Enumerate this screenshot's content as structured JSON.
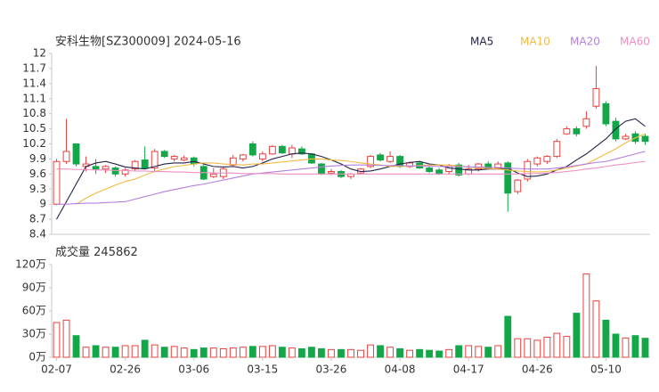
{
  "chart_data": [
    {
      "type": "candlestick",
      "title": "安科生物[SZ300009] 2024-05-16",
      "up_color": "#e8413f",
      "down_color": "#13a748",
      "open": [
        9.0,
        9.85,
        10.2,
        9.75,
        9.75,
        9.7,
        9.72,
        9.6,
        9.7,
        9.88,
        9.72,
        10.05,
        9.9,
        9.88,
        9.92,
        9.75,
        9.55,
        9.55,
        9.78,
        9.9,
        10.2,
        9.9,
        10.0,
        10.15,
        10.0,
        10.1,
        10.0,
        9.8,
        9.62,
        9.65,
        9.55,
        9.62,
        9.75,
        9.98,
        9.85,
        9.95,
        9.75,
        9.82,
        9.72,
        9.68,
        9.65,
        9.78,
        9.6,
        9.7,
        9.8,
        9.72,
        9.82,
        9.25,
        9.5,
        9.8,
        9.85,
        9.95,
        10.4,
        10.5,
        10.55,
        10.95,
        11.0,
        10.65,
        10.3,
        10.4,
        10.35
      ],
      "high": [
        9.9,
        10.7,
        10.2,
        9.95,
        9.9,
        9.78,
        9.75,
        9.72,
        9.88,
        10.15,
        10.1,
        10.08,
        9.98,
        9.97,
        9.95,
        9.78,
        9.72,
        9.75,
        9.98,
        10.0,
        10.25,
        10.05,
        10.18,
        10.18,
        10.18,
        10.15,
        10.02,
        9.82,
        9.7,
        9.68,
        9.62,
        9.72,
        9.98,
        10.02,
        10.05,
        9.98,
        9.85,
        9.85,
        9.75,
        9.72,
        9.8,
        9.82,
        9.78,
        9.82,
        9.85,
        9.85,
        9.85,
        9.5,
        9.9,
        9.95,
        9.98,
        10.3,
        10.55,
        10.55,
        10.85,
        11.75,
        11.05,
        10.72,
        10.4,
        10.45,
        10.4
      ],
      "low": [
        8.98,
        9.8,
        9.75,
        9.65,
        9.6,
        9.62,
        9.55,
        9.55,
        9.65,
        9.7,
        9.65,
        9.92,
        9.85,
        9.85,
        9.75,
        9.48,
        9.52,
        9.5,
        9.75,
        9.85,
        9.95,
        9.85,
        9.98,
        10.0,
        9.92,
        9.98,
        9.8,
        9.58,
        9.58,
        9.52,
        9.5,
        9.6,
        9.72,
        9.85,
        9.82,
        9.72,
        9.72,
        9.7,
        9.62,
        9.58,
        9.6,
        9.55,
        9.58,
        9.65,
        9.7,
        9.7,
        8.85,
        9.2,
        9.45,
        9.75,
        9.8,
        9.92,
        10.38,
        10.35,
        10.5,
        10.9,
        10.55,
        10.25,
        10.28,
        10.2,
        10.18
      ],
      "close": [
        9.85,
        10.05,
        9.8,
        9.8,
        9.7,
        9.75,
        9.6,
        9.68,
        9.85,
        9.72,
        10.05,
        9.95,
        9.95,
        9.92,
        9.8,
        9.5,
        9.6,
        9.7,
        9.92,
        9.98,
        9.98,
        10.0,
        10.15,
        10.02,
        10.12,
        10.0,
        9.82,
        9.6,
        9.65,
        9.55,
        9.6,
        9.7,
        9.95,
        9.88,
        9.95,
        9.75,
        9.82,
        9.72,
        9.65,
        9.6,
        9.75,
        9.58,
        9.7,
        9.8,
        9.72,
        9.8,
        9.22,
        9.48,
        9.85,
        9.92,
        9.95,
        10.25,
        10.5,
        10.4,
        10.7,
        11.3,
        10.6,
        10.3,
        10.35,
        10.25,
        10.25
      ],
      "series": [
        {
          "name": "MA5",
          "color": "#22224a",
          "values": [
            8.7,
            9.05,
            9.4,
            9.75,
            9.82,
            9.85,
            9.8,
            9.74,
            9.72,
            9.7,
            9.75,
            9.8,
            9.82,
            9.82,
            9.85,
            9.8,
            9.75,
            9.74,
            9.75,
            9.72,
            9.75,
            9.82,
            9.9,
            9.95,
            10.0,
            10.02,
            10.0,
            9.95,
            9.88,
            9.8,
            9.7,
            9.65,
            9.66,
            9.7,
            9.75,
            9.8,
            9.83,
            9.85,
            9.8,
            9.78,
            9.72,
            9.7,
            9.68,
            9.68,
            9.7,
            9.7,
            9.72,
            9.62,
            9.55,
            9.56,
            9.6,
            9.68,
            9.75,
            9.88,
            10.0,
            10.15,
            10.3,
            10.5,
            10.65,
            10.7,
            10.55
          ]
        },
        {
          "name": "MA10",
          "color": "#f5b942",
          "values": [
            null,
            null,
            9.0,
            9.12,
            9.22,
            9.3,
            9.38,
            9.45,
            9.5,
            9.58,
            9.65,
            9.7,
            9.75,
            9.77,
            9.8,
            9.82,
            9.82,
            9.8,
            9.79,
            9.78,
            9.8,
            9.8,
            9.82,
            9.84,
            9.86,
            9.88,
            9.9,
            9.9,
            9.88,
            9.87,
            9.85,
            9.82,
            9.8,
            9.78,
            9.75,
            9.75,
            9.76,
            9.77,
            9.78,
            9.78,
            9.78,
            9.76,
            9.74,
            9.72,
            9.71,
            9.7,
            9.68,
            9.66,
            9.65,
            9.64,
            9.65,
            9.68,
            9.72,
            9.76,
            9.8,
            9.9,
            10.0,
            10.1,
            10.22,
            10.32,
            10.4
          ]
        },
        {
          "name": "MA20",
          "color": "#b57fe0",
          "values": [
            9.0,
            9.0,
            9.01,
            9.02,
            9.02,
            9.03,
            9.04,
            9.05,
            9.1,
            9.15,
            9.2,
            9.25,
            9.29,
            9.33,
            9.37,
            9.4,
            9.44,
            9.48,
            9.52,
            9.56,
            9.6,
            9.62,
            9.64,
            9.66,
            9.68,
            9.7,
            9.72,
            9.74,
            9.76,
            9.77,
            9.78,
            9.78,
            9.78,
            9.77,
            9.77,
            9.77,
            9.76,
            9.76,
            9.76,
            9.75,
            9.75,
            9.75,
            9.74,
            9.74,
            9.73,
            9.73,
            9.72,
            9.71,
            9.7,
            9.7,
            9.7,
            9.72,
            9.74,
            9.77,
            9.8,
            9.83,
            9.85,
            9.9,
            9.95,
            10.0,
            10.05
          ]
        },
        {
          "name": "MA60",
          "color": "#f08fc0",
          "values": [
            9.7,
            9.7,
            9.69,
            9.69,
            9.68,
            9.68,
            9.67,
            9.67,
            9.66,
            9.66,
            9.65,
            9.65,
            9.64,
            9.64,
            9.63,
            9.63,
            9.62,
            9.62,
            9.62,
            9.61,
            9.61,
            9.61,
            9.61,
            9.6,
            9.6,
            9.6,
            9.6,
            9.6,
            9.6,
            9.6,
            9.6,
            9.6,
            9.6,
            9.6,
            9.6,
            9.6,
            9.6,
            9.6,
            9.6,
            9.6,
            9.6,
            9.6,
            9.6,
            9.6,
            9.6,
            9.6,
            9.6,
            9.6,
            9.61,
            9.61,
            9.62,
            9.63,
            9.65,
            9.67,
            9.7,
            9.72,
            9.75,
            9.78,
            9.8,
            9.83,
            9.85
          ]
        }
      ],
      "ylim": [
        8.4,
        12
      ],
      "yticks": [
        8.4,
        8.7,
        9,
        9.3,
        9.6,
        9.9,
        10.2,
        10.5,
        10.8,
        11.1,
        11.4,
        11.7,
        12
      ],
      "grid": false
    },
    {
      "type": "bar",
      "title": "成交量",
      "categories": [
        "02-07",
        null,
        null,
        null,
        null,
        null,
        null,
        "02-26",
        null,
        null,
        null,
        null,
        null,
        null,
        "03-06",
        null,
        null,
        null,
        null,
        null,
        null,
        "03-15",
        null,
        null,
        null,
        null,
        null,
        null,
        "03-26",
        null,
        null,
        null,
        null,
        null,
        null,
        "04-08",
        null,
        null,
        null,
        null,
        null,
        null,
        "04-17",
        null,
        null,
        null,
        null,
        null,
        null,
        "04-26",
        null,
        null,
        null,
        null,
        null,
        null,
        "05-10",
        null,
        null,
        null,
        null
      ],
      "values": [
        450000,
        480000,
        280000,
        130000,
        150000,
        130000,
        130000,
        150000,
        150000,
        220000,
        160000,
        130000,
        140000,
        120000,
        100000,
        120000,
        120000,
        110000,
        120000,
        130000,
        140000,
        140000,
        150000,
        130000,
        120000,
        110000,
        130000,
        110000,
        100000,
        100000,
        100000,
        90000,
        160000,
        150000,
        130000,
        110000,
        90000,
        100000,
        90000,
        80000,
        100000,
        150000,
        150000,
        140000,
        130000,
        150000,
        530000,
        240000,
        240000,
        220000,
        260000,
        310000,
        270000,
        570000,
        1080000,
        730000,
        480000,
        300000,
        250000,
        280000,
        245862
      ],
      "ylim": [
        0,
        1200000
      ],
      "yticks": [
        {
          "value": 0,
          "label": "0万"
        },
        {
          "value": 300000,
          "label": "30万"
        },
        {
          "value": 600000,
          "label": "60万"
        },
        {
          "value": 900000,
          "label": "90万"
        },
        {
          "value": 1200000,
          "label": "120万"
        }
      ],
      "grid": false
    }
  ]
}
